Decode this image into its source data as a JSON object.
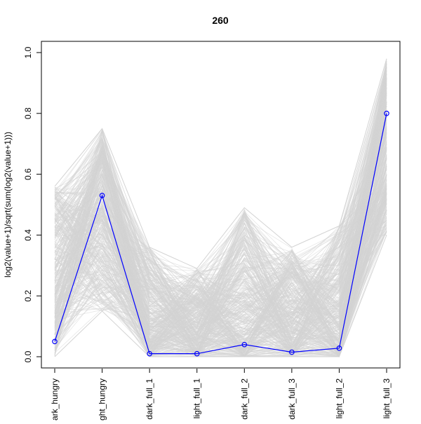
{
  "chart_data": {
    "type": "line",
    "title": "260",
    "xlabel": "",
    "ylabel": "log2(value+1)/sqrt(sum(log2(value+1)))",
    "categories": [
      "dark_hungry",
      "light_hungry",
      "dark_full_1",
      "light_full_1",
      "dark_full_2",
      "dark_full_3",
      "light_full_2",
      "light_full_3"
    ],
    "ylim": [
      0,
      1.0
    ],
    "yticks": [
      0.0,
      0.2,
      0.4,
      0.6,
      0.8,
      1.0
    ],
    "ytick_labels": [
      "0.0",
      "0.2",
      "0.4",
      "0.6",
      "0.8",
      "1.0"
    ],
    "grid": false,
    "series": [
      {
        "values": [
          0.05,
          0.53,
          0.01,
          0.01,
          0.04,
          0.015,
          0.028,
          0.8
        ],
        "color": "#0000ff",
        "marker": "open-circle"
      }
    ],
    "background_lines": {
      "color": "#d3d3d3",
      "min": [
        0.0,
        0.15,
        0.0,
        0.0,
        0.0,
        0.0,
        0.0,
        0.4
      ],
      "max": [
        0.56,
        0.75,
        0.36,
        0.29,
        0.49,
        0.36,
        0.43,
        0.98
      ]
    }
  }
}
